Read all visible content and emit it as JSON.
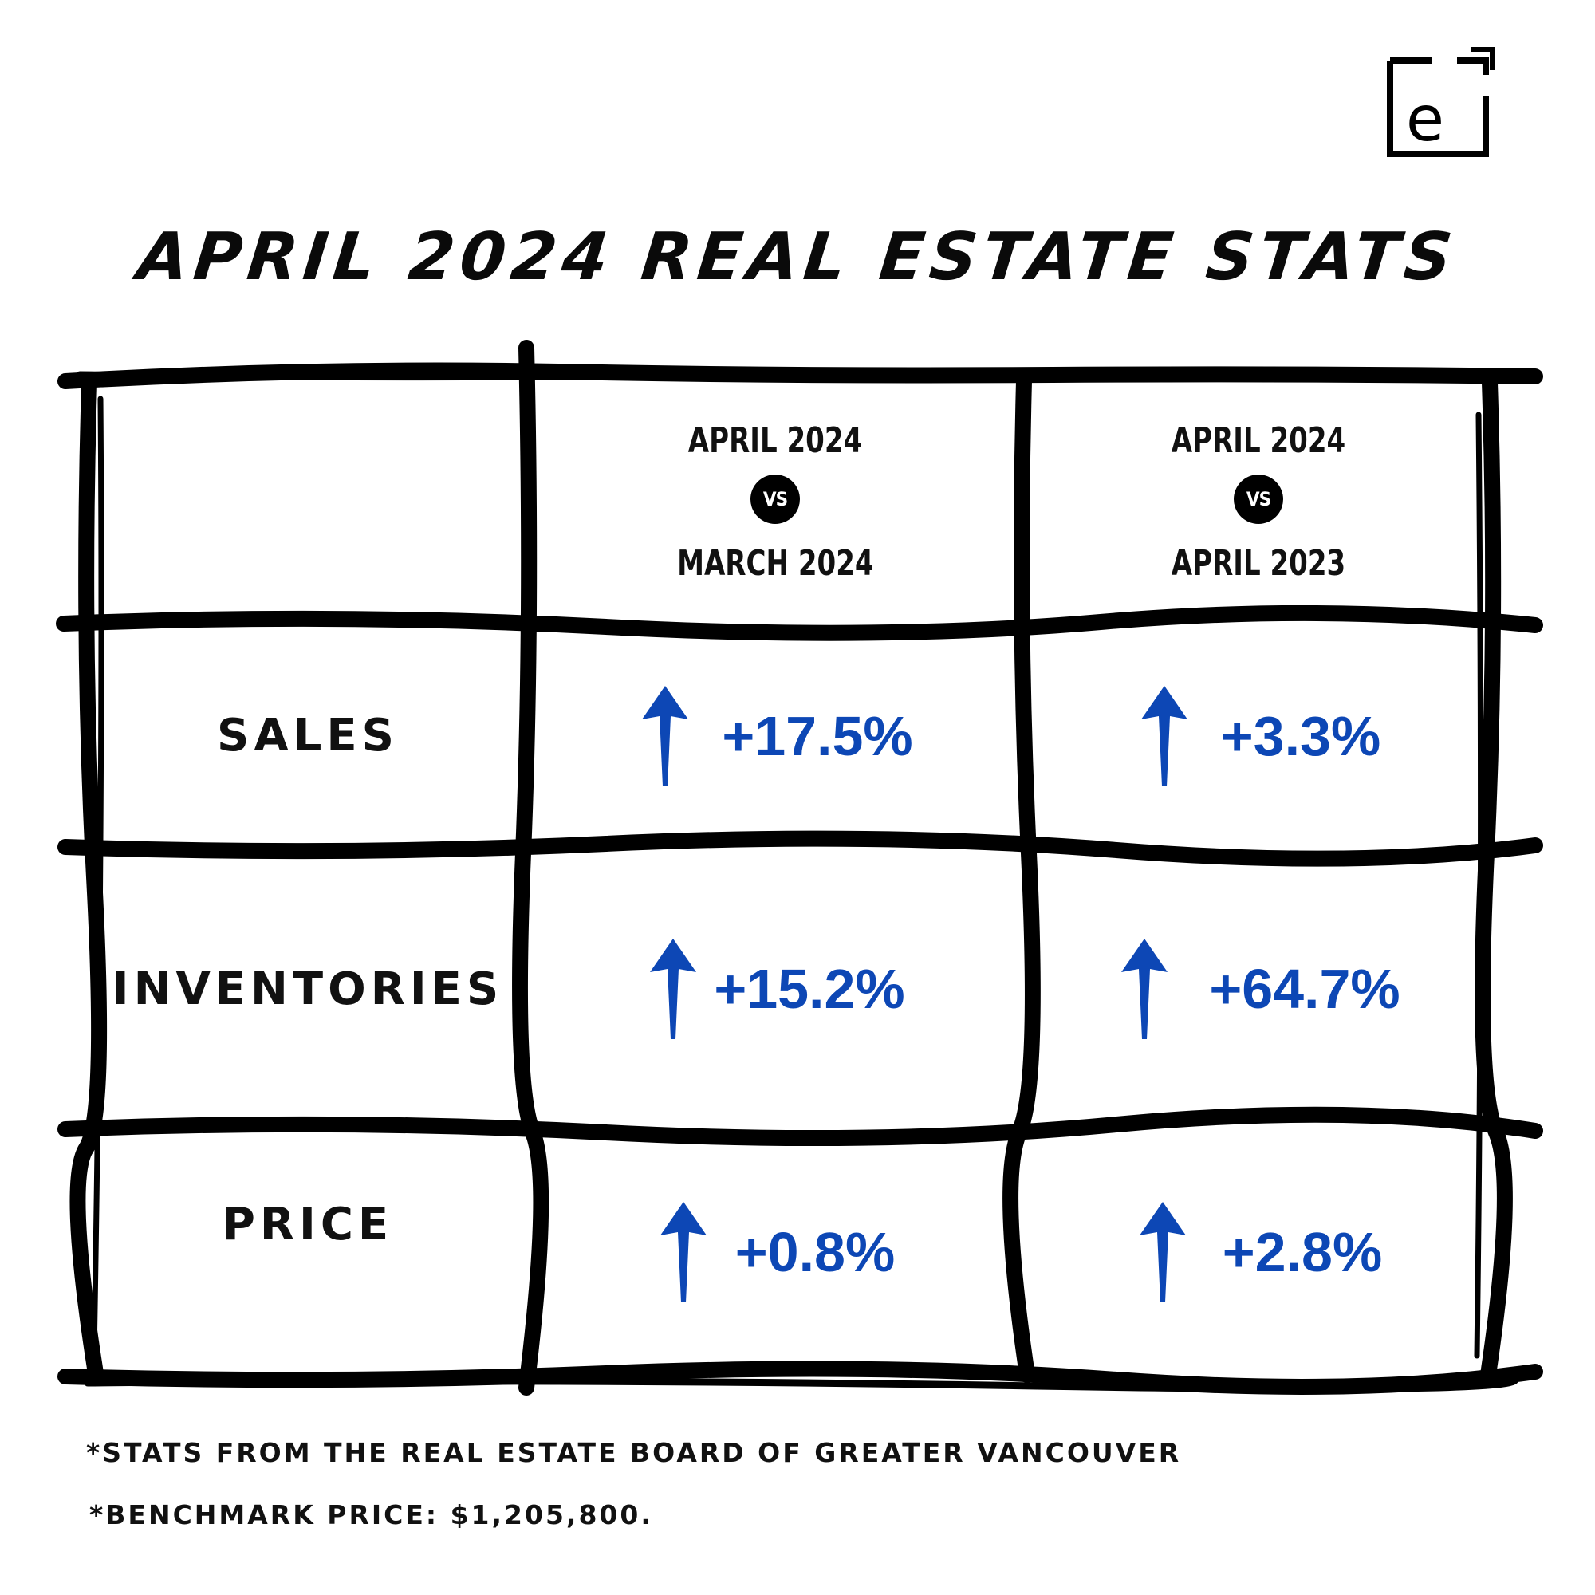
{
  "brand": {
    "logo_icon": "e-logo-icon"
  },
  "title": "APRIL 2024 REAL ESTATE STATS",
  "columns": [
    {
      "top": "APRIL 2024",
      "vs": "VS",
      "bottom": "MARCH 2024"
    },
    {
      "top": "APRIL 2024",
      "vs": "VS",
      "bottom": "APRIL 2023"
    }
  ],
  "rows": [
    {
      "label": "SALES",
      "values": [
        "+17.5%",
        "+3.3%"
      ]
    },
    {
      "label": "INVENTORIES",
      "values": [
        "+15.2%",
        "+64.7%"
      ]
    },
    {
      "label": "PRICE",
      "values": [
        "+0.8%",
        "+2.8%"
      ]
    }
  ],
  "trend_icon": "up-arrow-icon",
  "colors": {
    "value": "#0d47b5",
    "ink": "#000000"
  },
  "footnotes": [
    "*STATS FROM THE REAL ESTATE BOARD OF GREATER VANCOUVER",
    "*BENCHMARK PRICE: $1,205,800."
  ]
}
